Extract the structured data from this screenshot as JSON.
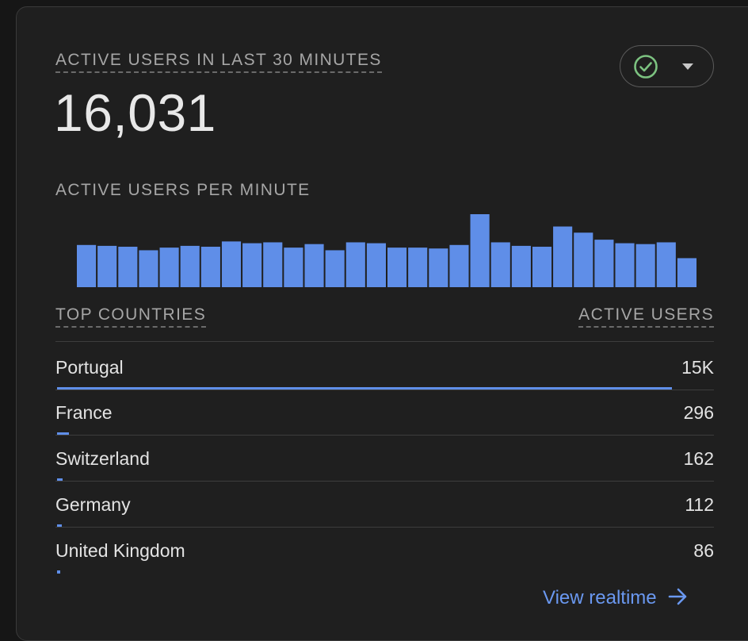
{
  "card": {
    "metric_title": "ACTIVE USERS IN LAST 30 MINUTES",
    "metric_value": "16,031",
    "status_icon": "check-circle-icon",
    "dropdown_icon": "caret-down-icon",
    "accent_color": "#5f8ee8",
    "status_color": "#7cc280"
  },
  "minute_chart": {
    "label": "ACTIVE USERS PER MINUTE"
  },
  "chart_data": {
    "type": "bar",
    "title": "ACTIVE USERS PER MINUTE",
    "xlabel": "",
    "ylabel": "",
    "grid": false,
    "values": [
      48,
      47,
      46,
      42,
      45,
      47,
      46,
      52,
      50,
      51,
      45,
      49,
      42,
      51,
      50,
      45,
      45,
      44,
      48,
      83,
      51,
      47,
      46,
      69,
      62,
      54,
      50,
      49,
      51,
      33
    ],
    "ylim": [
      0,
      83
    ],
    "color": "#5f8ee8"
  },
  "table": {
    "left_header": "TOP COUNTRIES",
    "right_header": "ACTIVE USERS",
    "rows": [
      {
        "country": "Portugal",
        "count": "15K",
        "share": 0.938
      },
      {
        "country": "France",
        "count": "296",
        "share": 0.018
      },
      {
        "country": "Switzerland",
        "count": "162",
        "share": 0.009
      },
      {
        "country": "Germany",
        "count": "112",
        "share": 0.007
      },
      {
        "country": "United Kingdom",
        "count": "86",
        "share": 0.005
      }
    ]
  },
  "footer": {
    "link_label": "View realtime",
    "link_icon": "arrow-right-icon"
  }
}
